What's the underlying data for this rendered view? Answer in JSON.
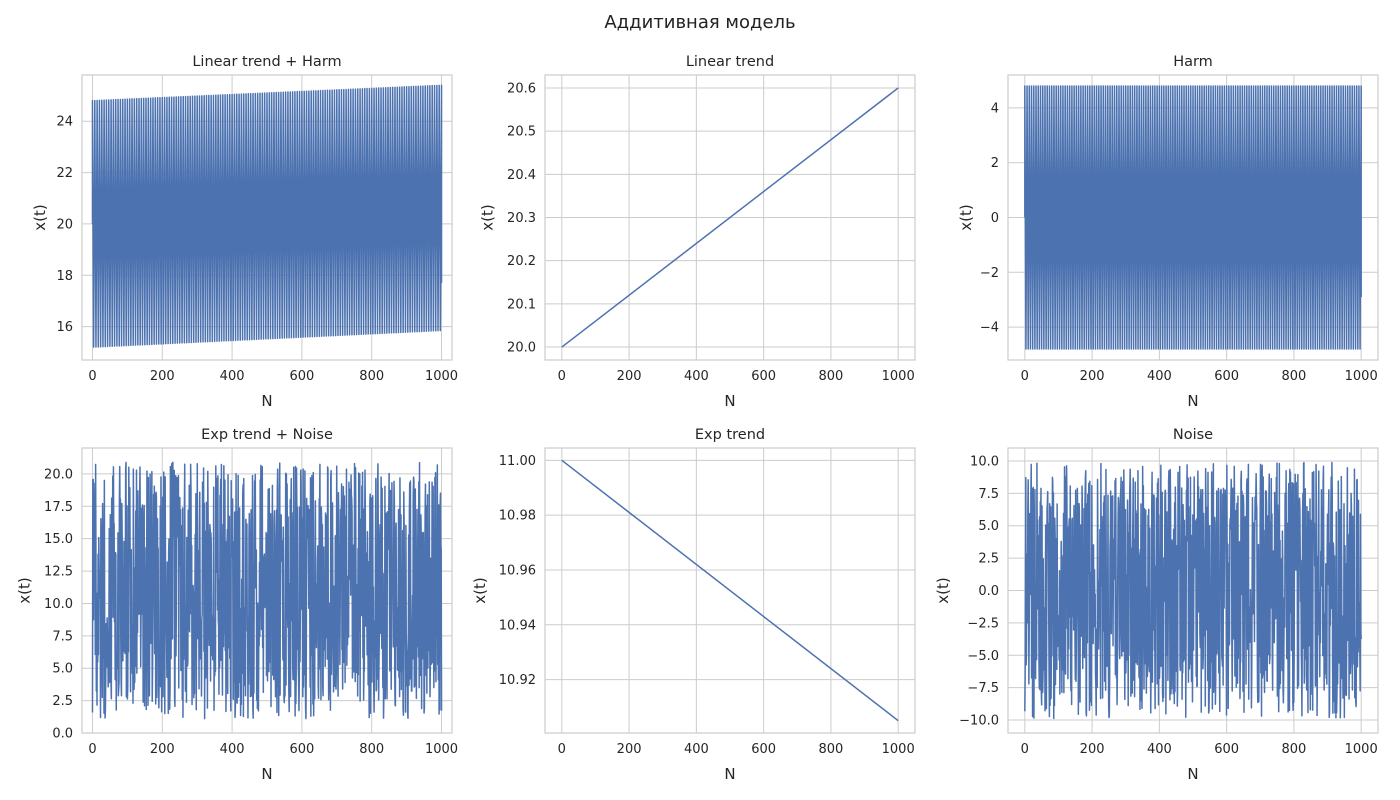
{
  "figure": {
    "suptitle": "Аддитивная модель"
  },
  "colors": {
    "line": "#4c72b0",
    "grid": "#cccccc",
    "spine": "#cccccc"
  },
  "chart_data": [
    {
      "type": "line",
      "title": "Linear trend + Harm",
      "xlabel": "N",
      "ylabel": "x(t)",
      "xlim": [
        -30,
        1030
      ],
      "ylim": [
        14.7,
        25.8
      ],
      "xticks": [
        0,
        200,
        400,
        600,
        800,
        1000
      ],
      "yticks": [
        16,
        18,
        20,
        22,
        24
      ],
      "grid": true,
      "series": [
        {
          "kind": "oscillation",
          "x_range": [
            0,
            1000
          ],
          "upper": [
            24.8,
            25.4
          ],
          "lower": [
            15.2,
            15.85
          ],
          "start": 20.0,
          "end": 17.7
        }
      ]
    },
    {
      "type": "line",
      "title": "Linear trend",
      "xlabel": "N",
      "ylabel": "x(t)",
      "xlim": [
        -50,
        1050
      ],
      "ylim": [
        19.97,
        20.63
      ],
      "xticks": [
        0,
        200,
        400,
        600,
        800,
        1000
      ],
      "yticks": [
        20.0,
        20.1,
        20.2,
        20.3,
        20.4,
        20.5,
        20.6
      ],
      "grid": true,
      "series": [
        {
          "kind": "line",
          "x": [
            0,
            1000
          ],
          "y": [
            20.0,
            20.6
          ]
        }
      ]
    },
    {
      "type": "line",
      "title": "Harm",
      "xlabel": "N",
      "ylabel": "x(t)",
      "xlim": [
        -50,
        1050
      ],
      "ylim": [
        -5.2,
        5.2
      ],
      "xticks": [
        0,
        200,
        400,
        600,
        800,
        1000
      ],
      "yticks": [
        -4,
        -2,
        0,
        2,
        4
      ],
      "grid": true,
      "series": [
        {
          "kind": "oscillation",
          "x_range": [
            0,
            1000
          ],
          "upper": [
            4.8,
            4.8
          ],
          "lower": [
            -4.8,
            -4.8
          ],
          "start": 0,
          "end": -2.9
        }
      ]
    },
    {
      "type": "line",
      "title": "Exp trend + Noise",
      "xlabel": "N",
      "ylabel": "x(t)",
      "xlim": [
        -30,
        1030
      ],
      "ylim": [
        0,
        22
      ],
      "xticks": [
        0,
        200,
        400,
        600,
        800,
        1000
      ],
      "yticks": [
        0.0,
        2.5,
        5.0,
        7.5,
        10.0,
        12.5,
        15.0,
        17.5,
        20.0
      ],
      "grid": true,
      "series": [
        {
          "kind": "noise",
          "x_range": [
            0,
            1000
          ],
          "min": 1.0,
          "max": 21.0,
          "center": 11.0
        }
      ]
    },
    {
      "type": "line",
      "title": "Exp trend",
      "xlabel": "N",
      "ylabel": "x(t)",
      "xlim": [
        -50,
        1050
      ],
      "ylim": [
        10.9005,
        11.0045
      ],
      "xticks": [
        0,
        200,
        400,
        600,
        800,
        1000
      ],
      "yticks": [
        10.92,
        10.94,
        10.96,
        10.98,
        11.0
      ],
      "grid": true,
      "series": [
        {
          "kind": "line",
          "x": [
            0,
            1000
          ],
          "y": [
            11.0,
            10.905
          ]
        }
      ]
    },
    {
      "type": "line",
      "title": "Noise",
      "xlabel": "N",
      "ylabel": "x(t)",
      "xlim": [
        -50,
        1050
      ],
      "ylim": [
        -11,
        11
      ],
      "xticks": [
        0,
        200,
        400,
        600,
        800,
        1000
      ],
      "yticks": [
        -10.0,
        -7.5,
        -5.0,
        -2.5,
        0.0,
        2.5,
        5.0,
        7.5,
        10.0
      ],
      "grid": true,
      "series": [
        {
          "kind": "noise",
          "x_range": [
            0,
            1000
          ],
          "min": -10.0,
          "max": 10.0,
          "center": 0.0
        }
      ]
    }
  ]
}
